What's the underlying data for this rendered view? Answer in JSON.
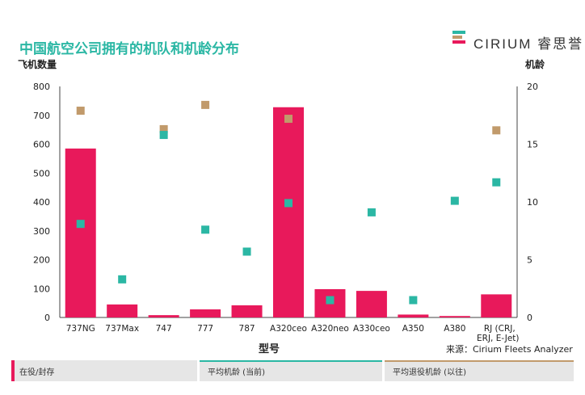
{
  "header": {
    "title": "中国航空公司拥有的机队和机龄分布",
    "logo_text": "CIRIUM 睿思誉",
    "source": "来源：Cirium Fleets Analyzer"
  },
  "legend": {
    "items": [
      {
        "label": "在役/封存",
        "color": "#e8195b"
      },
      {
        "label": "平均机龄 (当前)",
        "color": "#2bb7a4"
      },
      {
        "label": "平均退役机龄 (以往)",
        "color": "#c19a6b"
      }
    ]
  },
  "chart_data": {
    "type": "bar",
    "categories": [
      "737NG",
      "737Max",
      "747",
      "777",
      "787",
      "A320ceo",
      "A320neo",
      "A330ceo",
      "A350",
      "A380",
      "RJ (CRJ, ERJ, E-Jet)"
    ],
    "xlabel": "型号",
    "ylabel": "飞机数量",
    "y2label": "机龄",
    "ylim": [
      0,
      800
    ],
    "y2lim": [
      0,
      20
    ],
    "yticks": [
      0,
      100,
      200,
      300,
      400,
      500,
      600,
      700,
      800
    ],
    "y2ticks": [
      0,
      5,
      10,
      15,
      20
    ],
    "grid": false,
    "legend_placement": "bottom",
    "series": [
      {
        "name": "在役/封存",
        "axis": "left",
        "type": "bar",
        "color": "#e8195b",
        "values": [
          585,
          45,
          8,
          28,
          42,
          728,
          98,
          92,
          10,
          5,
          80
        ]
      },
      {
        "name": "平均机龄 (当前)",
        "axis": "right",
        "type": "scatter",
        "color": "#2bb7a4",
        "values": [
          8.1,
          3.3,
          15.8,
          7.6,
          5.7,
          9.9,
          1.5,
          9.1,
          1.5,
          10.1,
          11.7
        ]
      },
      {
        "name": "平均退役机龄 (以往)",
        "axis": "right",
        "type": "scatter",
        "color": "#c19a6b",
        "values": [
          17.9,
          null,
          16.3,
          18.4,
          null,
          17.2,
          null,
          null,
          null,
          null,
          16.2
        ]
      }
    ]
  }
}
